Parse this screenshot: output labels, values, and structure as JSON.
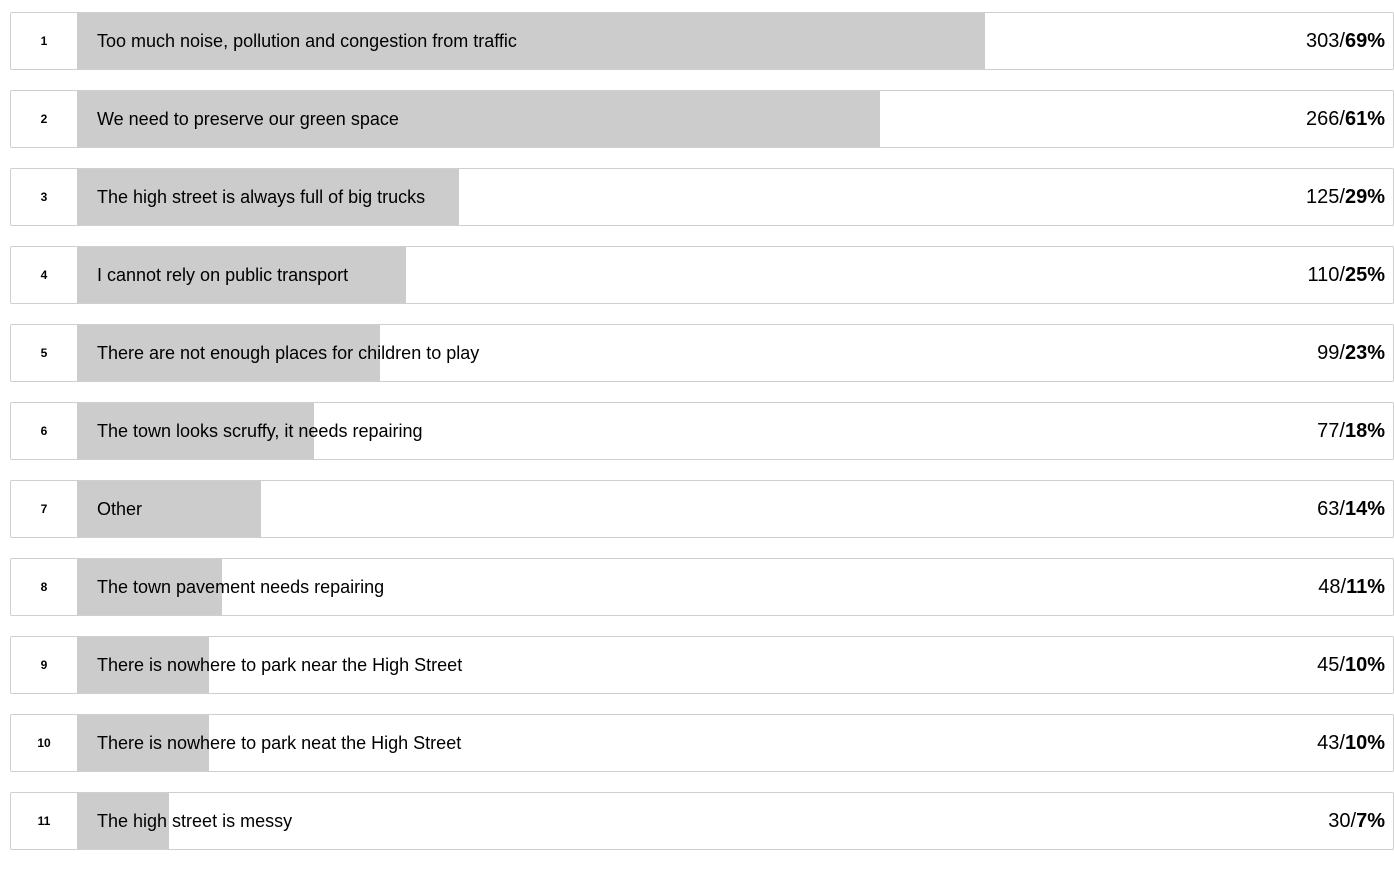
{
  "chart_data": {
    "type": "bar",
    "orientation": "horizontal",
    "title": "",
    "xlabel": "",
    "ylabel": "",
    "xlim": [
      0,
      100
    ],
    "bar_color": "#cccccc",
    "count_percent_separator": " / ",
    "rows": [
      {
        "rank": "1",
        "label": "Too much noise, pollution and congestion from traffic",
        "count": "303",
        "percent": "69%",
        "value": 69
      },
      {
        "rank": "2",
        "label": "We need to preserve our green space",
        "count": "266",
        "percent": "61%",
        "value": 61
      },
      {
        "rank": "3",
        "label": "The high street is always full of big trucks",
        "count": "125",
        "percent": "29%",
        "value": 29
      },
      {
        "rank": "4",
        "label": "I cannot rely on public transport",
        "count": "110",
        "percent": "25%",
        "value": 25
      },
      {
        "rank": "5",
        "label": "There are not enough places for children to play",
        "count": "99",
        "percent": "23%",
        "value": 23
      },
      {
        "rank": "6",
        "label": "The town looks scruffy, it needs repairing",
        "count": "77",
        "percent": "18%",
        "value": 18
      },
      {
        "rank": "7",
        "label": "Other",
        "count": "63",
        "percent": "14%",
        "value": 14
      },
      {
        "rank": "8",
        "label": "The town pavement needs repairing",
        "count": "48",
        "percent": "11%",
        "value": 11
      },
      {
        "rank": "9",
        "label": "There is nowhere to park near the High Street",
        "count": "45",
        "percent": "10%",
        "value": 10
      },
      {
        "rank": "10",
        "label": "There is nowhere to park neat the High Street",
        "count": "43",
        "percent": "10%",
        "value": 10
      },
      {
        "rank": "11",
        "label": "The high street is messy",
        "count": "30",
        "percent": "7%",
        "value": 7
      }
    ]
  }
}
